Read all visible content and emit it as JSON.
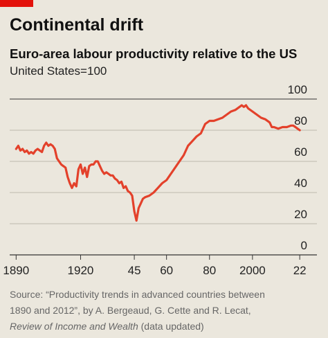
{
  "chart_data": {
    "type": "line",
    "title": "Continental drift",
    "subtitle": "Euro-area labour productivity relative to the US",
    "y_label": "United States=100",
    "x": [
      1890,
      1891,
      1892,
      1893,
      1894,
      1895,
      1896,
      1897,
      1898,
      1899,
      1900,
      1901,
      1902,
      1903,
      1904,
      1905,
      1906,
      1907,
      1908,
      1909,
      1910,
      1911,
      1912,
      1913,
      1914,
      1915,
      1916,
      1917,
      1918,
      1919,
      1920,
      1921,
      1922,
      1923,
      1924,
      1925,
      1926,
      1927,
      1928,
      1929,
      1930,
      1931,
      1932,
      1933,
      1934,
      1935,
      1936,
      1937,
      1938,
      1939,
      1940,
      1941,
      1942,
      1943,
      1944,
      1945,
      1946,
      1947,
      1948,
      1949,
      1950,
      1952,
      1954,
      1956,
      1958,
      1960,
      1962,
      1964,
      1966,
      1968,
      1970,
      1972,
      1974,
      1976,
      1978,
      1980,
      1982,
      1984,
      1986,
      1988,
      1990,
      1992,
      1994,
      1995,
      1996,
      1997,
      1998,
      2000,
      2002,
      2004,
      2006,
      2008,
      2009,
      2010,
      2012,
      2014,
      2016,
      2018,
      2019,
      2020,
      2021,
      2022
    ],
    "series": [
      {
        "name": "Euro area",
        "color": "#e3412b",
        "values": [
          68,
          70,
          67,
          68,
          66,
          67,
          65,
          66,
          65,
          67,
          68,
          67,
          66,
          70,
          72,
          70,
          71,
          70,
          68,
          62,
          60,
          58,
          57,
          56,
          50,
          46,
          43,
          46,
          44,
          55,
          58,
          52,
          56,
          50,
          57,
          58,
          58,
          60,
          60,
          57,
          54,
          52,
          53,
          52,
          51,
          51,
          49,
          48,
          46,
          47,
          43,
          44,
          41,
          40,
          38,
          28,
          22,
          30,
          33,
          36,
          37,
          38,
          40,
          43,
          46,
          48,
          52,
          56,
          60,
          64,
          70,
          73,
          76,
          78,
          84,
          86,
          86,
          87,
          88,
          90,
          92,
          93,
          95,
          96,
          95,
          96,
          94,
          92,
          90,
          88,
          87,
          85,
          82,
          82,
          81,
          82,
          82,
          83,
          83,
          82,
          81,
          80
        ]
      }
    ],
    "xlim": [
      1887,
      2030
    ],
    "ylim": [
      0,
      100
    ],
    "xticks": [
      1890,
      1920,
      {
        "value": 1945,
        "label": "45"
      },
      {
        "value": 1960,
        "label": "60"
      },
      {
        "value": 1980,
        "label": "80"
      },
      2000,
      {
        "value": 2022,
        "label": "22"
      }
    ],
    "yticks": [
      0,
      20,
      40,
      60,
      80,
      100
    ],
    "grid": true,
    "source": [
      "Source: “Productivity trends in advanced countries between",
      "1890 and 2012”, by A. Bergeaud, G. Cette and R. Lecat,",
      "Review of Income and Wealth",
      " (data updated)"
    ]
  }
}
